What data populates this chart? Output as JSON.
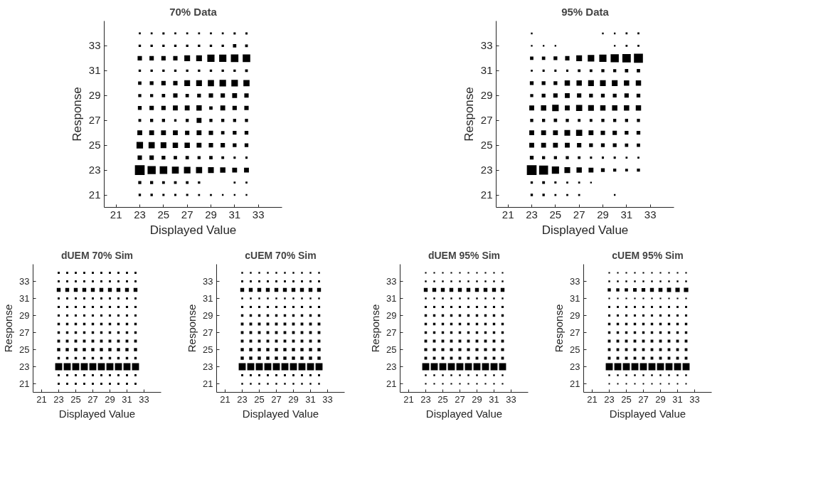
{
  "chart_data": [
    {
      "type": "bubble",
      "title": "70% Data",
      "xlabel": "Displayed Value",
      "ylabel": "Response",
      "marker": "square",
      "color": "#000000",
      "grid": false,
      "xlim": [
        20,
        35
      ],
      "ylim": [
        20,
        35
      ],
      "xticks": [
        21,
        23,
        25,
        27,
        29,
        31,
        33
      ],
      "yticks": [
        21,
        23,
        25,
        27,
        29,
        31,
        33
      ],
      "x": [
        23,
        24,
        25,
        26,
        27,
        28,
        29,
        30,
        31,
        32
      ],
      "series": [
        {
          "values": [
            34,
            34,
            34,
            34,
            34,
            34,
            34,
            34,
            34,
            34
          ],
          "sizes": [
            0.04,
            0.04,
            0.05,
            0.04,
            0.04,
            0.04,
            0.04,
            0.04,
            0.05,
            0.05
          ]
        },
        {
          "values": [
            33,
            33,
            33,
            33,
            33,
            33,
            33,
            33,
            33,
            33
          ],
          "sizes": [
            0.06,
            0.06,
            0.06,
            0.06,
            0.06,
            0.06,
            0.06,
            0.06,
            0.12,
            0.08
          ]
        },
        {
          "values": [
            32,
            32,
            32,
            32,
            32,
            32,
            32,
            32,
            32,
            32
          ],
          "sizes": [
            0.2,
            0.2,
            0.2,
            0.2,
            0.35,
            0.35,
            0.55,
            0.55,
            0.6,
            0.6
          ]
        },
        {
          "values": [
            31,
            31,
            31,
            31,
            31,
            31,
            31,
            31,
            31,
            31
          ],
          "sizes": [
            0.06,
            0.06,
            0.06,
            0.06,
            0.06,
            0.06,
            0.06,
            0.06,
            0.06,
            0.08
          ]
        },
        {
          "values": [
            30,
            30,
            30,
            30,
            30,
            30,
            30,
            30,
            30,
            30
          ],
          "sizes": [
            0.12,
            0.15,
            0.2,
            0.2,
            0.35,
            0.35,
            0.4,
            0.45,
            0.45,
            0.4
          ]
        },
        {
          "values": [
            29,
            29,
            29,
            29,
            29,
            29,
            29,
            29,
            29,
            29
          ],
          "sizes": [
            0.1,
            0.1,
            0.12,
            0.2,
            0.12,
            0.15,
            0.2,
            0.2,
            0.25,
            0.2
          ]
        },
        {
          "values": [
            28,
            28,
            28,
            28,
            28,
            28,
            28,
            28,
            28,
            28
          ],
          "sizes": [
            0.15,
            0.2,
            0.2,
            0.25,
            0.25,
            0.3,
            0.12,
            0.25,
            0.2,
            0.2
          ]
        },
        {
          "values": [
            27,
            27,
            27,
            27,
            27,
            27,
            27,
            27,
            27,
            27
          ],
          "sizes": [
            0.08,
            0.1,
            0.1,
            0.06,
            0.1,
            0.25,
            0.1,
            0.1,
            0.1,
            0.1
          ]
        },
        {
          "values": [
            26,
            26,
            26,
            26,
            26,
            26,
            26,
            26,
            26,
            26
          ],
          "sizes": [
            0.25,
            0.25,
            0.25,
            0.25,
            0.2,
            0.25,
            0.2,
            0.12,
            0.15,
            0.15
          ]
        },
        {
          "values": [
            25,
            25,
            25,
            25,
            25,
            25,
            25,
            25,
            25,
            25
          ],
          "sizes": [
            0.45,
            0.4,
            0.35,
            0.3,
            0.3,
            0.25,
            0.2,
            0.2,
            0.15,
            0.15
          ]
        },
        {
          "values": [
            24,
            24,
            24,
            24,
            24,
            24,
            24,
            24,
            24,
            24
          ],
          "sizes": [
            0.2,
            0.2,
            0.15,
            0.12,
            0.12,
            0.1,
            0.12,
            0.08,
            0.05,
            0.05
          ]
        },
        {
          "values": [
            23,
            23,
            23,
            23,
            23,
            23,
            23,
            23,
            23,
            23
          ],
          "sizes": [
            1,
            0.7,
            0.6,
            0.5,
            0.45,
            0.4,
            0.35,
            0.3,
            0.25,
            0.25
          ]
        },
        {
          "values": [
            22,
            22,
            22,
            22,
            22,
            22,
            null,
            null,
            22,
            22
          ],
          "sizes": [
            0.1,
            0.1,
            0.08,
            0.08,
            0.08,
            0.06,
            null,
            null,
            0.04,
            0.04
          ]
        },
        {
          "values": [
            21,
            21,
            21,
            21,
            21,
            21,
            21,
            21,
            21,
            21
          ],
          "sizes": [
            0.06,
            0.06,
            0.05,
            0.05,
            0.05,
            0.04,
            0.04,
            0.03,
            0.03,
            0.03
          ]
        }
      ]
    },
    {
      "type": "bubble",
      "title": "95% Data",
      "xlabel": "Displayed Value",
      "ylabel": "Response",
      "marker": "square",
      "color": "#000000",
      "grid": false,
      "xlim": [
        20,
        35
      ],
      "ylim": [
        20,
        35
      ],
      "xticks": [
        21,
        23,
        25,
        27,
        29,
        31,
        33
      ],
      "yticks": [
        21,
        23,
        25,
        27,
        29,
        31,
        33
      ],
      "x": [
        23,
        24,
        25,
        26,
        27,
        28,
        29,
        30,
        31,
        32
      ],
      "series": [
        {
          "values": [
            34,
            null,
            null,
            null,
            null,
            null,
            34,
            34,
            34,
            34
          ],
          "sizes": [
            0.03,
            null,
            null,
            null,
            null,
            null,
            0.03,
            0.03,
            0.04,
            0.04
          ]
        },
        {
          "values": [
            33,
            33,
            33,
            null,
            null,
            null,
            null,
            33,
            33,
            33
          ],
          "sizes": [
            0.03,
            0.03,
            0.03,
            null,
            null,
            null,
            null,
            0.03,
            0.04,
            0.04
          ]
        },
        {
          "values": [
            32,
            32,
            32,
            32,
            32,
            32,
            32,
            32,
            32,
            32
          ],
          "sizes": [
            0.12,
            0.12,
            0.15,
            0.2,
            0.35,
            0.45,
            0.55,
            0.7,
            0.75,
            0.85
          ]
        },
        {
          "values": [
            31,
            31,
            31,
            31,
            31,
            31,
            31,
            31,
            31,
            31
          ],
          "sizes": [
            0.04,
            0.05,
            0.05,
            0.05,
            0.08,
            0.08,
            0.1,
            0.1,
            0.12,
            0.12
          ]
        },
        {
          "values": [
            30,
            30,
            30,
            30,
            30,
            30,
            30,
            30,
            30,
            30
          ],
          "sizes": [
            0.15,
            0.15,
            0.15,
            0.3,
            0.3,
            0.35,
            0.35,
            0.35,
            0.3,
            0.3
          ]
        },
        {
          "values": [
            29,
            29,
            29,
            29,
            29,
            29,
            29,
            29,
            29,
            29
          ],
          "sizes": [
            0.1,
            0.15,
            0.2,
            0.25,
            0.2,
            0.15,
            0.15,
            0.15,
            0.2,
            0.15
          ]
        },
        {
          "values": [
            28,
            28,
            28,
            28,
            28,
            28,
            28,
            28,
            28,
            28
          ],
          "sizes": [
            0.25,
            0.3,
            0.45,
            0.25,
            0.4,
            0.35,
            0.3,
            0.3,
            0.3,
            0.3
          ]
        },
        {
          "values": [
            27,
            27,
            27,
            27,
            27,
            27,
            27,
            27,
            27,
            27
          ],
          "sizes": [
            0.1,
            0.1,
            0.12,
            0.1,
            0.08,
            0.08,
            0.1,
            0.1,
            0.1,
            0.1
          ]
        },
        {
          "values": [
            26,
            26,
            26,
            26,
            26,
            26,
            26,
            26,
            26,
            26
          ],
          "sizes": [
            0.25,
            0.25,
            0.25,
            0.35,
            0.4,
            0.25,
            0.2,
            0.2,
            0.15,
            0.15
          ]
        },
        {
          "values": [
            25,
            25,
            25,
            25,
            25,
            25,
            25,
            25,
            25,
            25
          ],
          "sizes": [
            0.25,
            0.25,
            0.25,
            0.25,
            0.2,
            0.15,
            0.15,
            0.15,
            0.12,
            0.12
          ]
        },
        {
          "values": [
            24,
            24,
            24,
            24,
            24,
            24,
            24,
            24,
            24,
            24
          ],
          "sizes": [
            0.15,
            0.1,
            0.1,
            0.1,
            0.08,
            0.05,
            0.05,
            0.05,
            0.04,
            0.04
          ]
        },
        {
          "values": [
            23,
            23,
            23,
            23,
            23,
            23,
            23,
            23,
            23,
            23
          ],
          "sizes": [
            1,
            0.85,
            0.55,
            0.35,
            0.3,
            0.25,
            0.15,
            0.1,
            0.08,
            0.1
          ]
        },
        {
          "values": [
            22,
            22,
            22,
            22,
            22,
            22,
            null,
            null,
            null,
            null
          ],
          "sizes": [
            0.06,
            0.08,
            0.05,
            0.04,
            0.04,
            0.03,
            null,
            null,
            null,
            null
          ]
        },
        {
          "values": [
            21,
            21,
            21,
            21,
            21,
            null,
            null,
            21,
            null,
            null
          ],
          "sizes": [
            0.06,
            0.06,
            0.04,
            0.04,
            0.04,
            null,
            null,
            0.03,
            null,
            null
          ]
        }
      ]
    },
    {
      "type": "bubble",
      "title": "dUEM 70% Sim",
      "xlabel": "Displayed Value",
      "ylabel": "Response",
      "marker": "square",
      "color": "#000000",
      "grid": false,
      "xlim": [
        20,
        35
      ],
      "ylim": [
        20,
        35
      ],
      "xticks": [
        21,
        23,
        25,
        27,
        29,
        31,
        33
      ],
      "yticks": [
        21,
        23,
        25,
        27,
        29,
        31,
        33
      ],
      "x": [
        23,
        24,
        25,
        26,
        27,
        28,
        29,
        30,
        31,
        32
      ],
      "series": [
        {
          "values": [
            34,
            34,
            34,
            34,
            34,
            34,
            34,
            34,
            34,
            34
          ],
          "sizes": [
            0.08,
            0.08,
            0.08,
            0.08,
            0.08,
            0.08,
            0.08,
            0.08,
            0.08,
            0.08
          ]
        },
        {
          "values": [
            33,
            33,
            33,
            33,
            33,
            33,
            33,
            33,
            33,
            33
          ],
          "sizes": [
            0.08,
            0.08,
            0.08,
            0.08,
            0.08,
            0.08,
            0.08,
            0.08,
            0.08,
            0.08
          ]
        },
        {
          "values": [
            32,
            32,
            32,
            32,
            32,
            32,
            32,
            32,
            32,
            32
          ],
          "sizes": [
            0.3,
            0.3,
            0.3,
            0.3,
            0.3,
            0.3,
            0.3,
            0.3,
            0.3,
            0.3
          ]
        },
        {
          "values": [
            31,
            31,
            31,
            31,
            31,
            31,
            31,
            31,
            31,
            31
          ],
          "sizes": [
            0.08,
            0.08,
            0.08,
            0.08,
            0.08,
            0.08,
            0.08,
            0.08,
            0.08,
            0.08
          ]
        },
        {
          "values": [
            30,
            30,
            30,
            30,
            30,
            30,
            30,
            30,
            30,
            30
          ],
          "sizes": [
            0.1,
            0.1,
            0.1,
            0.1,
            0.1,
            0.1,
            0.1,
            0.1,
            0.1,
            0.1
          ]
        },
        {
          "values": [
            29,
            29,
            29,
            29,
            29,
            29,
            29,
            29,
            29,
            29
          ],
          "sizes": [
            0.1,
            0.1,
            0.1,
            0.1,
            0.1,
            0.1,
            0.1,
            0.1,
            0.1,
            0.1
          ]
        },
        {
          "values": [
            28,
            28,
            28,
            28,
            28,
            28,
            28,
            28,
            28,
            28
          ],
          "sizes": [
            0.12,
            0.12,
            0.12,
            0.12,
            0.12,
            0.12,
            0.12,
            0.12,
            0.12,
            0.12
          ]
        },
        {
          "values": [
            27,
            27,
            27,
            27,
            27,
            27,
            27,
            27,
            27,
            27
          ],
          "sizes": [
            0.12,
            0.12,
            0.12,
            0.12,
            0.12,
            0.12,
            0.12,
            0.12,
            0.12,
            0.12
          ]
        },
        {
          "values": [
            26,
            26,
            26,
            26,
            26,
            26,
            26,
            26,
            26,
            26
          ],
          "sizes": [
            0.15,
            0.15,
            0.15,
            0.15,
            0.15,
            0.15,
            0.15,
            0.15,
            0.15,
            0.15
          ]
        },
        {
          "values": [
            25,
            25,
            25,
            25,
            25,
            25,
            25,
            25,
            25,
            25
          ],
          "sizes": [
            0.2,
            0.2,
            0.2,
            0.2,
            0.2,
            0.2,
            0.2,
            0.2,
            0.2,
            0.2
          ]
        },
        {
          "values": [
            24,
            24,
            24,
            24,
            24,
            24,
            24,
            24,
            24,
            24
          ],
          "sizes": [
            0.12,
            0.12,
            0.12,
            0.12,
            0.12,
            0.12,
            0.12,
            0.12,
            0.12,
            0.12
          ]
        },
        {
          "values": [
            23,
            23,
            23,
            23,
            23,
            23,
            23,
            23,
            23,
            23
          ],
          "sizes": [
            1,
            1,
            1,
            1,
            1,
            1,
            1,
            1,
            1,
            1
          ]
        },
        {
          "values": [
            22,
            22,
            22,
            22,
            22,
            22,
            22,
            22,
            22,
            22
          ],
          "sizes": [
            0.08,
            0.08,
            0.08,
            0.08,
            0.08,
            0.08,
            0.08,
            0.08,
            0.08,
            0.08
          ]
        },
        {
          "values": [
            21,
            21,
            21,
            21,
            21,
            21,
            21,
            21,
            21,
            21
          ],
          "sizes": [
            0.08,
            0.08,
            0.08,
            0.08,
            0.08,
            0.08,
            0.08,
            0.08,
            0.08,
            0.08
          ]
        }
      ]
    },
    {
      "type": "bubble",
      "title": "cUEM 70% Sim",
      "xlabel": "Displayed Value",
      "ylabel": "Response",
      "marker": "square",
      "color": "#000000",
      "grid": false,
      "xlim": [
        20,
        35
      ],
      "ylim": [
        20,
        35
      ],
      "xticks": [
        21,
        23,
        25,
        27,
        29,
        31,
        33
      ],
      "yticks": [
        21,
        23,
        25,
        27,
        29,
        31,
        33
      ],
      "x": [
        23,
        24,
        25,
        26,
        27,
        28,
        29,
        30,
        31,
        32
      ],
      "series": [
        {
          "values": [
            34,
            34,
            34,
            34,
            34,
            34,
            34,
            34,
            34,
            34
          ],
          "sizes": [
            0.06,
            0.06,
            0.06,
            0.06,
            0.06,
            0.06,
            0.06,
            0.06,
            0.06,
            0.06
          ]
        },
        {
          "values": [
            33,
            33,
            33,
            33,
            33,
            33,
            33,
            33,
            33,
            33
          ],
          "sizes": [
            0.08,
            0.08,
            0.08,
            0.08,
            0.08,
            0.08,
            0.08,
            0.08,
            0.08,
            0.08
          ]
        },
        {
          "values": [
            32,
            32,
            32,
            32,
            32,
            32,
            32,
            32,
            32,
            32
          ],
          "sizes": [
            0.3,
            0.3,
            0.3,
            0.3,
            0.3,
            0.3,
            0.3,
            0.3,
            0.3,
            0.3
          ]
        },
        {
          "values": [
            31,
            31,
            31,
            31,
            31,
            31,
            31,
            31,
            31,
            31
          ],
          "sizes": [
            0.06,
            0.06,
            0.06,
            0.06,
            0.06,
            0.06,
            0.06,
            0.06,
            0.06,
            0.06
          ]
        },
        {
          "values": [
            30,
            30,
            30,
            30,
            30,
            30,
            30,
            30,
            30,
            30
          ],
          "sizes": [
            0.1,
            0.1,
            0.1,
            0.1,
            0.1,
            0.1,
            0.1,
            0.1,
            0.1,
            0.1
          ]
        },
        {
          "values": [
            29,
            29,
            29,
            29,
            29,
            29,
            29,
            29,
            29,
            29
          ],
          "sizes": [
            0.12,
            0.12,
            0.12,
            0.12,
            0.12,
            0.12,
            0.12,
            0.12,
            0.12,
            0.12
          ]
        },
        {
          "values": [
            28,
            28,
            28,
            28,
            28,
            28,
            28,
            28,
            28,
            28
          ],
          "sizes": [
            0.15,
            0.15,
            0.15,
            0.15,
            0.15,
            0.15,
            0.15,
            0.15,
            0.15,
            0.15
          ]
        },
        {
          "values": [
            27,
            27,
            27,
            27,
            27,
            27,
            27,
            27,
            27,
            27
          ],
          "sizes": [
            0.15,
            0.15,
            0.15,
            0.15,
            0.15,
            0.15,
            0.15,
            0.15,
            0.15,
            0.15
          ]
        },
        {
          "values": [
            26,
            26,
            26,
            26,
            26,
            26,
            26,
            26,
            26,
            26
          ],
          "sizes": [
            0.15,
            0.15,
            0.15,
            0.15,
            0.15,
            0.15,
            0.15,
            0.15,
            0.15,
            0.15
          ]
        },
        {
          "values": [
            25,
            25,
            25,
            25,
            25,
            25,
            25,
            25,
            25,
            25
          ],
          "sizes": [
            0.2,
            0.2,
            0.2,
            0.2,
            0.2,
            0.2,
            0.2,
            0.2,
            0.2,
            0.2
          ]
        },
        {
          "values": [
            24,
            24,
            24,
            24,
            24,
            24,
            24,
            24,
            24,
            24
          ],
          "sizes": [
            0.2,
            0.2,
            0.2,
            0.2,
            0.2,
            0.2,
            0.2,
            0.2,
            0.2,
            0.2
          ]
        },
        {
          "values": [
            23,
            23,
            23,
            23,
            23,
            23,
            23,
            23,
            23,
            23
          ],
          "sizes": [
            1,
            1,
            1,
            1,
            1,
            1,
            1,
            1,
            1,
            1
          ]
        },
        {
          "values": [
            22,
            22,
            22,
            22,
            22,
            22,
            22,
            22,
            22,
            22
          ],
          "sizes": [
            0.08,
            0.08,
            0.08,
            0.08,
            0.08,
            0.08,
            0.08,
            0.08,
            0.08,
            0.08
          ]
        },
        {
          "values": [
            21,
            21,
            21,
            21,
            21,
            21,
            21,
            21,
            21,
            21
          ],
          "sizes": [
            0.06,
            0.06,
            0.06,
            0.06,
            0.06,
            0.06,
            0.06,
            0.06,
            0.06,
            0.06
          ]
        }
      ]
    },
    {
      "type": "bubble",
      "title": "dUEM 95% Sim",
      "xlabel": "Displayed Value",
      "ylabel": "Response",
      "marker": "square",
      "color": "#000000",
      "grid": false,
      "xlim": [
        20,
        35
      ],
      "ylim": [
        20,
        35
      ],
      "xticks": [
        21,
        23,
        25,
        27,
        29,
        31,
        33
      ],
      "yticks": [
        21,
        23,
        25,
        27,
        29,
        31,
        33
      ],
      "x": [
        23,
        24,
        25,
        26,
        27,
        28,
        29,
        30,
        31,
        32
      ],
      "series": [
        {
          "values": [
            34,
            34,
            34,
            34,
            34,
            34,
            34,
            34,
            34,
            34
          ],
          "sizes": [
            0.05,
            0.05,
            0.05,
            0.05,
            0.05,
            0.05,
            0.05,
            0.05,
            0.05,
            0.05
          ]
        },
        {
          "values": [
            33,
            33,
            33,
            33,
            33,
            33,
            33,
            33,
            33,
            33
          ],
          "sizes": [
            0.06,
            0.06,
            0.06,
            0.06,
            0.06,
            0.06,
            0.06,
            0.06,
            0.06,
            0.06
          ]
        },
        {
          "values": [
            32,
            32,
            32,
            32,
            32,
            32,
            32,
            32,
            32,
            32
          ],
          "sizes": [
            0.3,
            0.3,
            0.3,
            0.3,
            0.3,
            0.3,
            0.3,
            0.3,
            0.3,
            0.3
          ]
        },
        {
          "values": [
            31,
            31,
            31,
            31,
            31,
            31,
            31,
            31,
            31,
            31
          ],
          "sizes": [
            0.06,
            0.06,
            0.06,
            0.06,
            0.06,
            0.06,
            0.06,
            0.06,
            0.06,
            0.06
          ]
        },
        {
          "values": [
            30,
            30,
            30,
            30,
            30,
            30,
            30,
            30,
            30,
            30
          ],
          "sizes": [
            0.1,
            0.1,
            0.1,
            0.1,
            0.1,
            0.1,
            0.1,
            0.1,
            0.1,
            0.1
          ]
        },
        {
          "values": [
            29,
            29,
            29,
            29,
            29,
            29,
            29,
            29,
            29,
            29
          ],
          "sizes": [
            0.12,
            0.12,
            0.12,
            0.12,
            0.12,
            0.12,
            0.12,
            0.12,
            0.12,
            0.12
          ]
        },
        {
          "values": [
            28,
            28,
            28,
            28,
            28,
            28,
            28,
            28,
            28,
            28
          ],
          "sizes": [
            0.12,
            0.12,
            0.12,
            0.12,
            0.12,
            0.12,
            0.12,
            0.12,
            0.12,
            0.12
          ]
        },
        {
          "values": [
            27,
            27,
            27,
            27,
            27,
            27,
            27,
            27,
            27,
            27
          ],
          "sizes": [
            0.12,
            0.12,
            0.12,
            0.12,
            0.12,
            0.12,
            0.12,
            0.12,
            0.12,
            0.12
          ]
        },
        {
          "values": [
            26,
            26,
            26,
            26,
            26,
            26,
            26,
            26,
            26,
            26
          ],
          "sizes": [
            0.15,
            0.15,
            0.15,
            0.15,
            0.15,
            0.15,
            0.15,
            0.15,
            0.15,
            0.15
          ]
        },
        {
          "values": [
            25,
            25,
            25,
            25,
            25,
            25,
            25,
            25,
            25,
            25
          ],
          "sizes": [
            0.18,
            0.18,
            0.18,
            0.18,
            0.18,
            0.18,
            0.18,
            0.18,
            0.18,
            0.18
          ]
        },
        {
          "values": [
            24,
            24,
            24,
            24,
            24,
            24,
            24,
            24,
            24,
            24
          ],
          "sizes": [
            0.15,
            0.15,
            0.15,
            0.15,
            0.15,
            0.15,
            0.15,
            0.15,
            0.15,
            0.15
          ]
        },
        {
          "values": [
            23,
            23,
            23,
            23,
            23,
            23,
            23,
            23,
            23,
            23
          ],
          "sizes": [
            1,
            1,
            1,
            1,
            1,
            1,
            1,
            1,
            1,
            1
          ]
        },
        {
          "values": [
            22,
            22,
            22,
            22,
            22,
            22,
            22,
            22,
            22,
            22
          ],
          "sizes": [
            0.06,
            0.06,
            0.06,
            0.06,
            0.06,
            0.06,
            0.06,
            0.06,
            0.06,
            0.06
          ]
        },
        {
          "values": [
            21,
            21,
            21,
            21,
            21,
            21,
            21,
            21,
            21,
            21
          ],
          "sizes": [
            0.05,
            0.05,
            0.05,
            0.05,
            0.05,
            0.05,
            0.05,
            0.05,
            0.05,
            0.05
          ]
        }
      ]
    },
    {
      "type": "bubble",
      "title": "cUEM 95% Sim",
      "xlabel": "Displayed Value",
      "ylabel": "Response",
      "marker": "square",
      "color": "#000000",
      "grid": false,
      "xlim": [
        20,
        35
      ],
      "ylim": [
        20,
        35
      ],
      "xticks": [
        21,
        23,
        25,
        27,
        29,
        31,
        33
      ],
      "yticks": [
        21,
        23,
        25,
        27,
        29,
        31,
        33
      ],
      "x": [
        23,
        24,
        25,
        26,
        27,
        28,
        29,
        30,
        31,
        32
      ],
      "series": [
        {
          "values": [
            34,
            34,
            34,
            34,
            34,
            34,
            34,
            34,
            34,
            34
          ],
          "sizes": [
            0.05,
            0.05,
            0.05,
            0.05,
            0.05,
            0.05,
            0.05,
            0.05,
            0.05,
            0.05
          ]
        },
        {
          "values": [
            33,
            33,
            33,
            33,
            33,
            33,
            33,
            33,
            33,
            33
          ],
          "sizes": [
            0.06,
            0.06,
            0.06,
            0.06,
            0.06,
            0.06,
            0.06,
            0.06,
            0.06,
            0.06
          ]
        },
        {
          "values": [
            32,
            32,
            32,
            32,
            32,
            32,
            32,
            32,
            32,
            32
          ],
          "sizes": [
            0.2,
            0.2,
            0.22,
            0.25,
            0.28,
            0.3,
            0.32,
            0.35,
            0.38,
            0.4
          ]
        },
        {
          "values": [
            31,
            31,
            31,
            31,
            31,
            31,
            31,
            31,
            31,
            31
          ],
          "sizes": [
            0.05,
            0.05,
            0.05,
            0.05,
            0.05,
            0.05,
            0.05,
            0.05,
            0.05,
            0.05
          ]
        },
        {
          "values": [
            30,
            30,
            30,
            30,
            30,
            30,
            30,
            30,
            30,
            30
          ],
          "sizes": [
            0.08,
            0.08,
            0.08,
            0.08,
            0.08,
            0.08,
            0.08,
            0.08,
            0.08,
            0.08
          ]
        },
        {
          "values": [
            29,
            29,
            29,
            29,
            29,
            29,
            29,
            29,
            29,
            29
          ],
          "sizes": [
            0.1,
            0.1,
            0.1,
            0.1,
            0.1,
            0.1,
            0.1,
            0.1,
            0.1,
            0.1
          ]
        },
        {
          "values": [
            28,
            28,
            28,
            28,
            28,
            28,
            28,
            28,
            28,
            28
          ],
          "sizes": [
            0.12,
            0.12,
            0.12,
            0.12,
            0.12,
            0.12,
            0.12,
            0.12,
            0.12,
            0.12
          ]
        },
        {
          "values": [
            27,
            27,
            27,
            27,
            27,
            27,
            27,
            27,
            27,
            27
          ],
          "sizes": [
            0.12,
            0.12,
            0.12,
            0.12,
            0.12,
            0.12,
            0.12,
            0.12,
            0.12,
            0.12
          ]
        },
        {
          "values": [
            26,
            26,
            26,
            26,
            26,
            26,
            26,
            26,
            26,
            26
          ],
          "sizes": [
            0.15,
            0.15,
            0.15,
            0.15,
            0.15,
            0.15,
            0.15,
            0.15,
            0.15,
            0.15
          ]
        },
        {
          "values": [
            25,
            25,
            25,
            25,
            25,
            25,
            25,
            25,
            25,
            25
          ],
          "sizes": [
            0.15,
            0.15,
            0.15,
            0.15,
            0.15,
            0.15,
            0.15,
            0.15,
            0.15,
            0.15
          ]
        },
        {
          "values": [
            24,
            24,
            24,
            24,
            24,
            24,
            24,
            24,
            24,
            24
          ],
          "sizes": [
            0.15,
            0.15,
            0.15,
            0.15,
            0.15,
            0.15,
            0.15,
            0.15,
            0.15,
            0.15
          ]
        },
        {
          "values": [
            23,
            23,
            23,
            23,
            23,
            23,
            23,
            23,
            23,
            23
          ],
          "sizes": [
            1,
            1,
            1,
            1,
            1,
            1,
            1,
            1,
            1,
            1
          ]
        },
        {
          "values": [
            22,
            22,
            22,
            22,
            22,
            22,
            22,
            22,
            22,
            22
          ],
          "sizes": [
            0.06,
            0.06,
            0.06,
            0.06,
            0.06,
            0.06,
            0.06,
            0.06,
            0.06,
            0.06
          ]
        },
        {
          "values": [
            21,
            21,
            21,
            21,
            21,
            21,
            21,
            21,
            21,
            21
          ],
          "sizes": [
            0.04,
            0.04,
            0.04,
            0.04,
            0.04,
            0.04,
            0.04,
            0.04,
            0.04,
            0.04
          ]
        }
      ]
    }
  ]
}
